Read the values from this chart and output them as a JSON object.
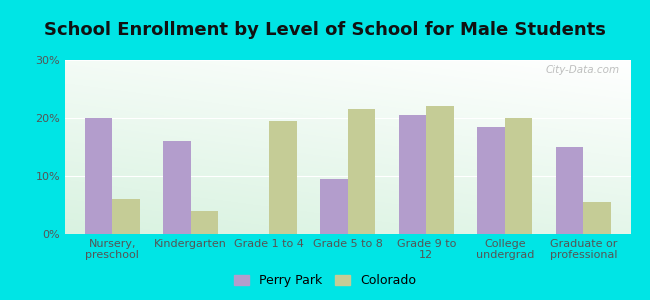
{
  "title": "School Enrollment by Level of School for Male Students",
  "categories": [
    "Nursery,\npreschool",
    "Kindergarten",
    "Grade 1 to 4",
    "Grade 5 to 8",
    "Grade 9 to\n12",
    "College\nundergrad",
    "Graduate or\nprofessional"
  ],
  "perry_park": [
    20,
    16,
    0,
    9.5,
    20.5,
    18.5,
    15
  ],
  "colorado": [
    6,
    4,
    19.5,
    21.5,
    22,
    20,
    5.5
  ],
  "perry_park_color": "#b39dcc",
  "colorado_color": "#c5cc96",
  "background_color": "#00e5e5",
  "ylim": [
    0,
    30
  ],
  "yticks": [
    0,
    10,
    20,
    30
  ],
  "ytick_labels": [
    "0%",
    "10%",
    "20%",
    "30%"
  ],
  "bar_width": 0.35,
  "legend_perry": "Perry Park",
  "legend_colorado": "Colorado",
  "title_fontsize": 13,
  "tick_fontsize": 8
}
